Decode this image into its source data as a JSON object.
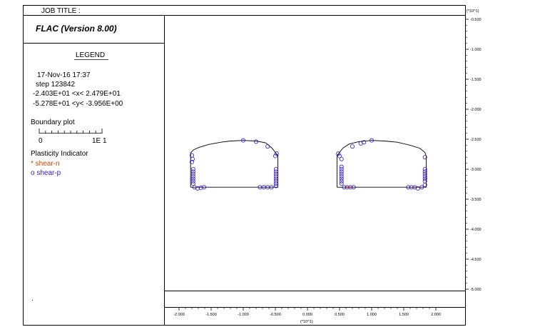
{
  "header": {
    "job_title_label": "JOB TITLE :",
    "scale_top_right": "(*10^1)"
  },
  "left_panel": {
    "program_title": "FLAC (Version 8.00)",
    "legend_heading": "LEGEND",
    "date_time": "17-Nov-16  17:37",
    "step_line": "step   123842",
    "x_range_line": "-2.403E+01 <x<  2.479E+01",
    "y_range_line": "-5.278E+01 <y< -3.956E+00",
    "boundary_plot_label": "Boundary plot",
    "boundary_scale_zero": "0",
    "boundary_scale_max": "1E  1",
    "plasticity_label": "Plasticity Indicator",
    "shear_n_label": "* shear-n",
    "shear_p_label": "o shear-p",
    "footer_mark": "."
  },
  "colors": {
    "shear_n": "#cc4400",
    "shear_p": "#3311cc",
    "boundary": "#000000"
  },
  "chart_data": {
    "type": "scatter",
    "x_scale_label": "(*10^1)",
    "y_scale_label": "(*10^1)",
    "xlim": [
      -2.45,
      2.5
    ],
    "ylim": [
      -5.15,
      -0.45
    ],
    "x_ticks": [
      -2.0,
      -1.5,
      -1.0,
      -0.5,
      0.0,
      0.5,
      1.0,
      1.5,
      2.0
    ],
    "x_tick_labels": [
      "-2.000",
      "-1.500",
      "-1.000",
      "-0.500",
      "0.000",
      "0.500",
      "1.000",
      "1.500",
      "2.000"
    ],
    "y_ticks": [
      -0.5,
      -1.0,
      -1.5,
      -2.0,
      -2.5,
      -3.0,
      -3.5,
      -4.0,
      -4.5,
      -5.0
    ],
    "y_tick_labels": [
      "-0.500",
      "-1.000",
      "-1.500",
      "-2.000",
      "-2.500",
      "-3.000",
      "-3.500",
      "-4.000",
      "-4.500",
      "-5.000"
    ],
    "tunnels": [
      {
        "boundary": [
          [
            -1.82,
            -3.3
          ],
          [
            -1.82,
            -2.73
          ],
          [
            -1.78,
            -2.68
          ],
          [
            -1.7,
            -2.64
          ],
          [
            -1.55,
            -2.59
          ],
          [
            -1.35,
            -2.55
          ],
          [
            -1.2,
            -2.53
          ],
          [
            -1.0,
            -2.52
          ],
          [
            -0.8,
            -2.53
          ],
          [
            -0.65,
            -2.56
          ],
          [
            -0.55,
            -2.65
          ],
          [
            -0.5,
            -2.72
          ],
          [
            -0.46,
            -2.77
          ],
          [
            -0.46,
            -3.3
          ],
          [
            -1.82,
            -3.3
          ]
        ],
        "shear_p": [
          [
            -1.0,
            -2.52
          ],
          [
            -0.8,
            -2.54
          ],
          [
            -0.62,
            -2.62
          ],
          [
            -0.48,
            -2.74
          ],
          [
            -0.5,
            -2.78
          ],
          [
            -1.8,
            -2.77
          ],
          [
            -1.79,
            -2.83
          ],
          [
            -1.8,
            -2.88
          ],
          [
            -1.78,
            -3.0
          ],
          [
            -1.78,
            -3.04
          ],
          [
            -1.78,
            -3.08
          ],
          [
            -1.78,
            -3.12
          ],
          [
            -1.78,
            -3.16
          ],
          [
            -1.78,
            -3.2
          ],
          [
            -1.78,
            -3.24
          ],
          [
            -1.76,
            -3.3
          ],
          [
            -1.71,
            -3.32
          ],
          [
            -1.66,
            -3.31
          ],
          [
            -1.61,
            -3.3
          ],
          [
            -0.74,
            -3.3
          ],
          [
            -0.68,
            -3.3
          ],
          [
            -0.62,
            -3.3
          ],
          [
            -0.56,
            -3.3
          ],
          [
            -0.49,
            -3.0
          ],
          [
            -0.49,
            -3.04
          ],
          [
            -0.49,
            -3.08
          ],
          [
            -0.49,
            -3.12
          ],
          [
            -0.49,
            -3.16
          ],
          [
            -0.49,
            -3.2
          ],
          [
            -0.49,
            -3.24
          ],
          [
            -0.49,
            -3.28
          ]
        ],
        "shear_n": []
      },
      {
        "boundary": [
          [
            0.46,
            -3.3
          ],
          [
            0.46,
            -2.77
          ],
          [
            0.5,
            -2.72
          ],
          [
            0.55,
            -2.65
          ],
          [
            0.65,
            -2.58
          ],
          [
            0.8,
            -2.54
          ],
          [
            1.0,
            -2.52
          ],
          [
            1.2,
            -2.53
          ],
          [
            1.4,
            -2.55
          ],
          [
            1.6,
            -2.6
          ],
          [
            1.75,
            -2.65
          ],
          [
            1.83,
            -2.72
          ],
          [
            1.85,
            -2.78
          ],
          [
            1.85,
            -3.3
          ],
          [
            0.46,
            -3.3
          ]
        ],
        "shear_p": [
          [
            0.48,
            -2.74
          ],
          [
            0.5,
            -2.78
          ],
          [
            0.53,
            -2.83
          ],
          [
            0.7,
            -2.62
          ],
          [
            0.83,
            -2.57
          ],
          [
            0.88,
            -2.55
          ],
          [
            1.0,
            -2.52
          ],
          [
            0.53,
            -2.96
          ],
          [
            0.53,
            -3.0
          ],
          [
            0.53,
            -3.04
          ],
          [
            0.53,
            -3.08
          ],
          [
            0.53,
            -3.12
          ],
          [
            0.53,
            -3.16
          ],
          [
            0.53,
            -3.2
          ],
          [
            0.53,
            -3.24
          ],
          [
            0.57,
            -3.3
          ],
          [
            0.62,
            -3.3
          ],
          [
            0.67,
            -3.3
          ],
          [
            0.72,
            -3.3
          ],
          [
            1.57,
            -3.3
          ],
          [
            1.62,
            -3.3
          ],
          [
            1.67,
            -3.3
          ],
          [
            1.72,
            -3.32
          ],
          [
            1.78,
            -3.3
          ],
          [
            1.83,
            -2.8
          ],
          [
            1.83,
            -3.0
          ],
          [
            1.83,
            -3.04
          ],
          [
            1.83,
            -3.08
          ],
          [
            1.83,
            -3.12
          ],
          [
            1.83,
            -3.16
          ],
          [
            1.83,
            -3.2
          ],
          [
            1.83,
            -3.26
          ]
        ],
        "shear_n": [
          [
            0.62,
            -3.3
          ],
          [
            0.67,
            -3.3
          ],
          [
            1.67,
            -3.3
          ]
        ]
      }
    ]
  }
}
